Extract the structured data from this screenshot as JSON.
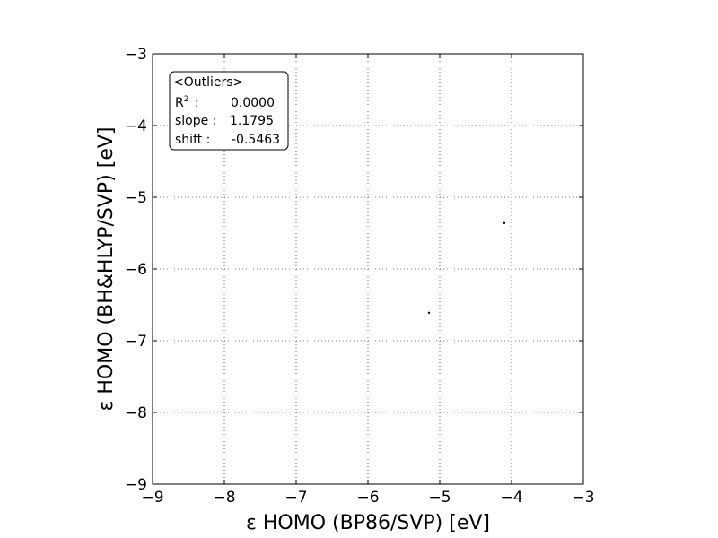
{
  "chart_data": {
    "type": "scatter",
    "title": "",
    "xlabel": "ε HOMO (BP86/SVP) [eV]",
    "ylabel": "ε HOMO (BH&HLYP/SVP) [eV]",
    "xlim": [
      -9,
      -3
    ],
    "ylim": [
      -9,
      -3
    ],
    "xticks": [
      -9,
      -8,
      -7,
      -6,
      -5,
      -4,
      -3
    ],
    "yticks": [
      -9,
      -8,
      -7,
      -6,
      -5,
      -4,
      -3
    ],
    "xtick_labels": [
      "−9",
      "−8",
      "−7",
      "−6",
      "−5",
      "−4",
      "−3"
    ],
    "ytick_labels": [
      "−9",
      "−8",
      "−7",
      "−6",
      "−5",
      "−4",
      "−3"
    ],
    "grid": true,
    "point_color": "#000000",
    "series": [
      {
        "x": [
          -5.15,
          -4.1
        ],
        "y": [
          -6.61,
          -5.36
        ]
      }
    ],
    "annotation": {
      "placement": "top-left",
      "title": "<Outliers>",
      "rows": [
        {
          "label": "R",
          "superscript": "2",
          "sep": " :",
          "value": "0.0000"
        },
        {
          "label": "slope",
          "superscript": "",
          "sep": " :",
          "value": "1.1795"
        },
        {
          "label": "shift",
          "superscript": "",
          "sep": " :",
          "value": "-0.5463"
        }
      ]
    }
  }
}
